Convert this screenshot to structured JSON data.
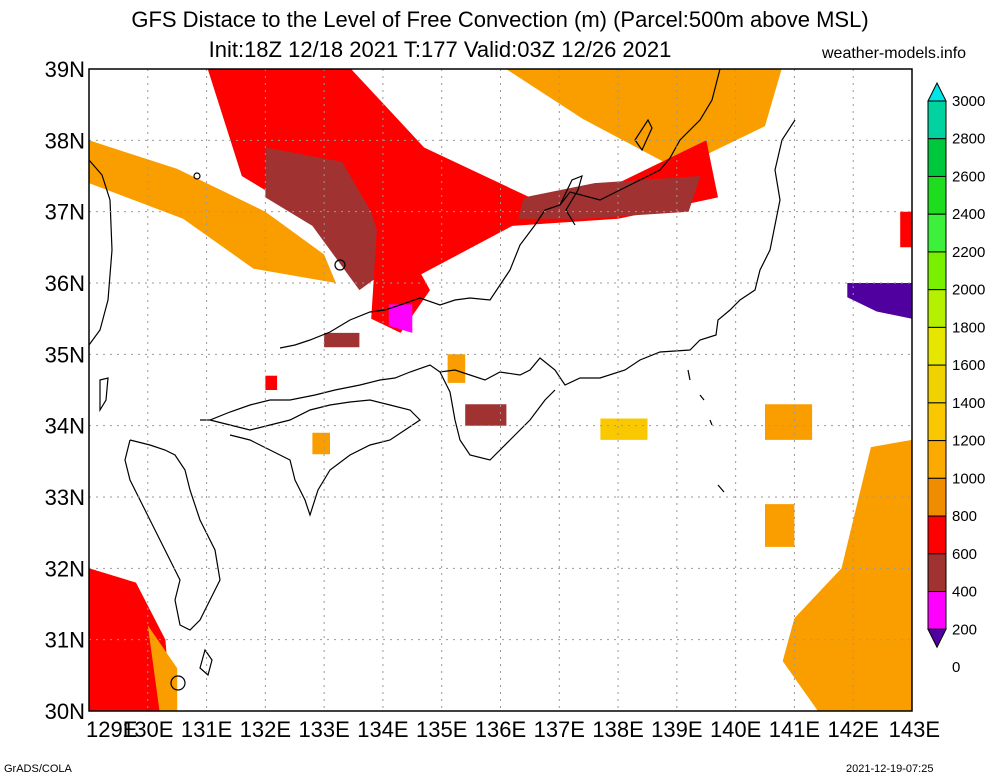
{
  "header": {
    "title_line1": "GFS Distace to the Level of Free Convection (m) (Parcel:500m above MSL)",
    "title_line2": "Init:18Z 12/18 2021 T:177 Valid:03Z 12/26 2021",
    "brand": "weather-models.info"
  },
  "footer": {
    "left": "GrADS/COLA",
    "right": "2021-12-19-07:25"
  },
  "map": {
    "lat_labels": [
      "39N",
      "38N",
      "37N",
      "36N",
      "35N",
      "34N",
      "33N",
      "32N",
      "31N",
      "30N"
    ],
    "lon_labels": [
      "129E",
      "130E",
      "131E",
      "132E",
      "133E",
      "134E",
      "135E",
      "136E",
      "137E",
      "138E",
      "139E",
      "140E",
      "141E",
      "142E",
      "143E"
    ],
    "lat_range": [
      30,
      39
    ],
    "lon_range": [
      129,
      143
    ],
    "grid": "dotted"
  },
  "colorbar": {
    "labels": [
      "3000",
      "2800",
      "2600",
      "2400",
      "2200",
      "2000",
      "1800",
      "1600",
      "1400",
      "1200",
      "1000",
      "800",
      "600",
      "400",
      "200",
      "0"
    ],
    "colors": [
      "#00e6e6",
      "#00d2a0",
      "#00c83c",
      "#1edc1e",
      "#3cf03c",
      "#78f000",
      "#b4f000",
      "#e6e600",
      "#f0d200",
      "#fac800",
      "#faaa00",
      "#f08c00",
      "#ff0000",
      "#a03232",
      "#ff00ff",
      "#50009f"
    ]
  },
  "fields": [
    {
      "color": "#fa9e00",
      "polys": [
        [
          129,
          39.05
        ],
        [
          136,
          39.05
        ],
        [
          137.4,
          38.3
        ],
        [
          139,
          37.6
        ],
        [
          140.5,
          38.2
        ],
        [
          140.8,
          39.05
        ],
        [
          129,
          39.05
        ]
      ]
    },
    {
      "color": "#fa9e00",
      "polys": [
        [
          129,
          38.0
        ],
        [
          130.5,
          37.6
        ],
        [
          132.0,
          37.0
        ],
        [
          133.0,
          36.4
        ],
        [
          133.2,
          36.0
        ],
        [
          131.8,
          36.2
        ],
        [
          130.6,
          36.9
        ],
        [
          129,
          37.4
        ]
      ]
    },
    {
      "color": "#ff0000",
      "polys": [
        [
          131.0,
          39.05
        ],
        [
          133.4,
          39.05
        ],
        [
          134.7,
          37.9
        ],
        [
          136.5,
          37.2
        ],
        [
          138.0,
          37.4
        ],
        [
          139.5,
          38.0
        ],
        [
          139.7,
          37.2
        ],
        [
          138.0,
          36.9
        ],
        [
          136.2,
          36.8
        ],
        [
          134.6,
          36.1
        ],
        [
          133.2,
          36.7
        ],
        [
          131.6,
          37.5
        ]
      ]
    },
    {
      "color": "#a03232",
      "polys": [
        [
          132.0,
          37.9
        ],
        [
          133.3,
          37.7
        ],
        [
          133.8,
          37.0
        ],
        [
          134.1,
          36.2
        ],
        [
          133.6,
          35.9
        ],
        [
          132.8,
          36.8
        ],
        [
          132.0,
          37.2
        ]
      ]
    },
    {
      "color": "#a03232",
      "polys": [
        [
          136.4,
          37.2
        ],
        [
          137.6,
          37.4
        ],
        [
          139.4,
          37.5
        ],
        [
          139.2,
          37.0
        ],
        [
          137.4,
          36.9
        ],
        [
          136.3,
          36.9
        ]
      ]
    },
    {
      "color": "#ff0000",
      "polys": [
        [
          129,
          32.0
        ],
        [
          129.8,
          31.8
        ],
        [
          130.3,
          31.0
        ],
        [
          130.4,
          30.0
        ],
        [
          129,
          30.0
        ]
      ]
    },
    {
      "color": "#fa9e00",
      "polys": [
        [
          141.0,
          31.3
        ],
        [
          141.8,
          32.0
        ],
        [
          142.3,
          33.7
        ],
        [
          143,
          33.8
        ],
        [
          143,
          30.0
        ],
        [
          141.4,
          30.0
        ],
        [
          140.8,
          30.7
        ]
      ]
    },
    {
      "color": "#fa9e00",
      "polys": [
        [
          130.0,
          31.2
        ],
        [
          130.5,
          30.6
        ],
        [
          130.5,
          30.0
        ],
        [
          130.2,
          30.0
        ]
      ]
    },
    {
      "color": "#ff0000",
      "polys": [
        [
          133.9,
          36.8
        ],
        [
          134.4,
          36.5
        ],
        [
          134.8,
          35.9
        ],
        [
          134.3,
          35.3
        ],
        [
          133.8,
          35.5
        ]
      ]
    },
    {
      "color": "#ff0000",
      "polys": [
        [
          142.8,
          37.0
        ],
        [
          143,
          37.0
        ],
        [
          143,
          36.5
        ],
        [
          142.8,
          36.5
        ]
      ]
    },
    {
      "color": "#50009f",
      "polys": [
        [
          141.9,
          36.0
        ],
        [
          143,
          36.0
        ],
        [
          143,
          35.5
        ],
        [
          142.4,
          35.6
        ],
        [
          141.9,
          35.8
        ]
      ]
    },
    {
      "color": "#ff00ff",
      "polys": [
        [
          134.1,
          35.7
        ],
        [
          134.5,
          35.7
        ],
        [
          134.5,
          35.3
        ],
        [
          134.1,
          35.4
        ]
      ]
    },
    {
      "color": "#fa9e00",
      "polys": [
        [
          140.5,
          32.3
        ],
        [
          141.0,
          32.3
        ],
        [
          141.0,
          32.9
        ],
        [
          140.5,
          32.9
        ]
      ]
    },
    {
      "color": "#fac800",
      "polys": [
        [
          137.7,
          33.8
        ],
        [
          138.5,
          33.8
        ],
        [
          138.5,
          34.1
        ],
        [
          137.7,
          34.1
        ]
      ]
    },
    {
      "color": "#fa9e00",
      "polys": [
        [
          140.5,
          33.8
        ],
        [
          141.3,
          33.8
        ],
        [
          141.3,
          34.3
        ],
        [
          140.5,
          34.3
        ]
      ]
    },
    {
      "color": "#a03232",
      "polys": [
        [
          135.4,
          34.0
        ],
        [
          136.1,
          34.0
        ],
        [
          136.1,
          34.3
        ],
        [
          135.4,
          34.3
        ]
      ]
    },
    {
      "color": "#a03232",
      "polys": [
        [
          133.0,
          35.1
        ],
        [
          133.6,
          35.1
        ],
        [
          133.6,
          35.3
        ],
        [
          133.0,
          35.3
        ]
      ]
    },
    {
      "color": "#ff0000",
      "polys": [
        [
          132.0,
          34.5
        ],
        [
          132.2,
          34.5
        ],
        [
          132.2,
          34.7
        ],
        [
          132.0,
          34.7
        ]
      ]
    },
    {
      "color": "#fa9e00",
      "polys": [
        [
          132.8,
          33.6
        ],
        [
          133.1,
          33.6
        ],
        [
          133.1,
          33.9
        ],
        [
          132.8,
          33.9
        ]
      ]
    },
    {
      "color": "#fa9e00",
      "polys": [
        [
          135.1,
          34.6
        ],
        [
          135.4,
          34.6
        ],
        [
          135.4,
          35.0
        ],
        [
          135.1,
          35.0
        ]
      ]
    }
  ]
}
